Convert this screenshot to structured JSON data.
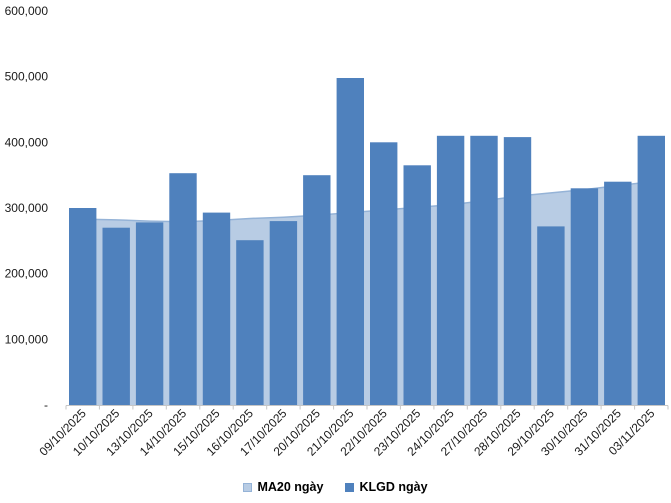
{
  "chart_data": {
    "type": "bar",
    "title": "",
    "xlabel": "",
    "ylabel": "",
    "grid": false,
    "legend_position": "bottom",
    "ylim": [
      0,
      600000
    ],
    "categories": [
      "09/10/2025",
      "10/10/2025",
      "13/10/2025",
      "14/10/2025",
      "15/10/2025",
      "16/10/2025",
      "17/10/2025",
      "20/10/2025",
      "21/10/2025",
      "22/10/2025",
      "23/10/2025",
      "24/10/2025",
      "27/10/2025",
      "28/10/2025",
      "29/10/2025",
      "30/10/2025",
      "31/10/2025",
      "03/11/2025"
    ],
    "yticks": [
      {
        "value": 0,
        "label": "-"
      },
      {
        "value": 100000,
        "label": "100,000"
      },
      {
        "value": 200000,
        "label": "200,000"
      },
      {
        "value": 300000,
        "label": "300,000"
      },
      {
        "value": 400000,
        "label": "400,000"
      },
      {
        "value": 500000,
        "label": "500,000"
      },
      {
        "value": 600000,
        "label": "600,000"
      }
    ],
    "series": [
      {
        "name": "MA20 ngày",
        "type": "area",
        "fill": "#B8CCE4",
        "line": "#95B3D7",
        "values": [
          283000,
          282000,
          280000,
          279000,
          281000,
          284000,
          286000,
          289000,
          293000,
          297000,
          301000,
          305000,
          311000,
          318000,
          323000,
          328000,
          334000,
          340000
        ]
      },
      {
        "name": "KLGD ngày",
        "type": "bar",
        "color": "#4F81BD",
        "values": [
          300000,
          270000,
          278000,
          353000,
          293000,
          251000,
          280000,
          350000,
          498000,
          400000,
          365000,
          410000,
          410000,
          408000,
          272000,
          330000,
          340000,
          410000
        ]
      }
    ],
    "axis_color": "#C6C6C6",
    "text_color": "#1A1A1A"
  }
}
